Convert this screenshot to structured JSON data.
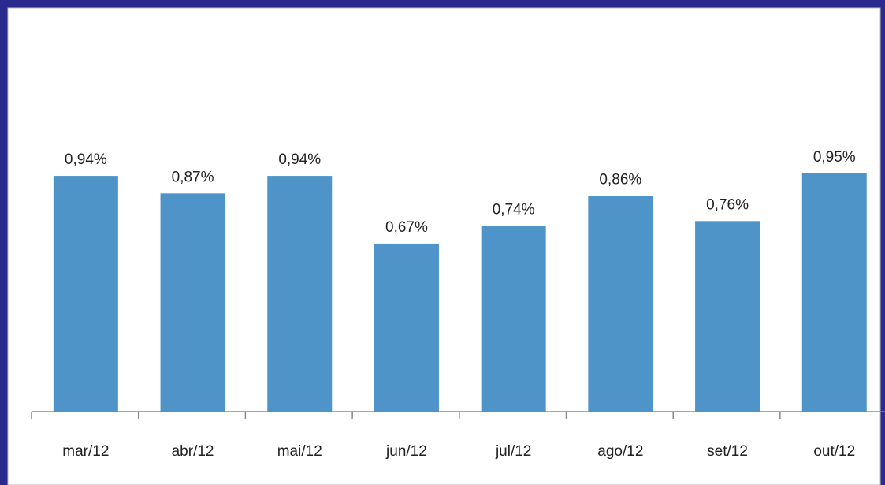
{
  "chart_data": {
    "type": "bar",
    "categories": [
      "mar/12",
      "abr/12",
      "mai/12",
      "jun/12",
      "jul/12",
      "ago/12",
      "set/12",
      "out/12"
    ],
    "values": [
      0.94,
      0.87,
      0.94,
      0.67,
      0.74,
      0.86,
      0.76,
      0.95
    ],
    "value_labels": [
      "0,94%",
      "0,87%",
      "0,94%",
      "0,67%",
      "0,74%",
      "0,86%",
      "0,76%",
      "0,95%"
    ],
    "color": "#4f94c9"
  }
}
